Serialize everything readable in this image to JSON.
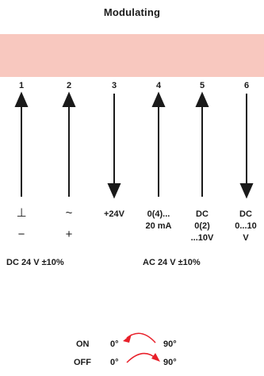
{
  "title": "Modulating",
  "terminals": [
    "1",
    "2",
    "3",
    "4",
    "5",
    "6"
  ],
  "terminal_signals": {
    "t1_top": "⊥",
    "t1_bottom": "−",
    "t2_top": "~",
    "t2_bottom": "+",
    "t3": "+24V",
    "t4_line1": "0(4)...",
    "t4_line2": "20 mA",
    "t5_line1": "DC",
    "t5_line2": "0(2)",
    "t5_line3": "...10V",
    "t6_line1": "DC",
    "t6_line2": "0...10",
    "t6_line3": "V"
  },
  "supply_groups": {
    "dc": "DC 24 V ±10%",
    "ac": "AC 24 V ±10%"
  },
  "direction_legend": {
    "on_label": "ON",
    "on_from": "0°",
    "on_to": "90°",
    "off_label": "OFF",
    "off_from": "0°",
    "off_to": "90°"
  },
  "colors": {
    "band": "#f8c8bf",
    "arrow": "#1a1a1a",
    "rotation_arrow": "#e8202a"
  }
}
